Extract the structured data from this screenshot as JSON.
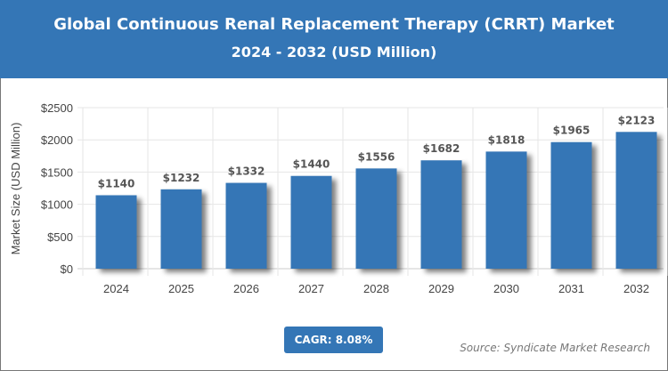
{
  "header": {
    "title": "Global Continuous Renal Replacement Therapy (CRRT) Market",
    "subtitle": "2024 - 2032 (USD Million)"
  },
  "chart_data": {
    "type": "bar",
    "title": "Global Continuous Renal Replacement Therapy (CRRT) Market",
    "subtitle": "2024 - 2032 (USD Million)",
    "categories": [
      "2024",
      "2025",
      "2026",
      "2027",
      "2028",
      "2029",
      "2030",
      "2031",
      "2032"
    ],
    "values": [
      1140,
      1232,
      1332,
      1440,
      1556,
      1682,
      1818,
      1965,
      2123
    ],
    "data_labels": [
      "$1140",
      "$1232",
      "$1332",
      "$1440",
      "$1556",
      "$1682",
      "$1818",
      "$1965",
      "$2123"
    ],
    "ylabel": "Market Size (USD Million)",
    "xlabel": "",
    "ylim": [
      0,
      2500
    ],
    "yticks": [
      0,
      500,
      1000,
      1500,
      2000,
      2500
    ],
    "ytick_labels": [
      "$0",
      "$500",
      "$1000",
      "$1500",
      "$2000",
      "$2500"
    ],
    "grid": true,
    "bar_color": "#3476b6"
  },
  "footer": {
    "cagr": "CAGR: 8.08%",
    "source": "Source: Syndicate Market Research"
  }
}
